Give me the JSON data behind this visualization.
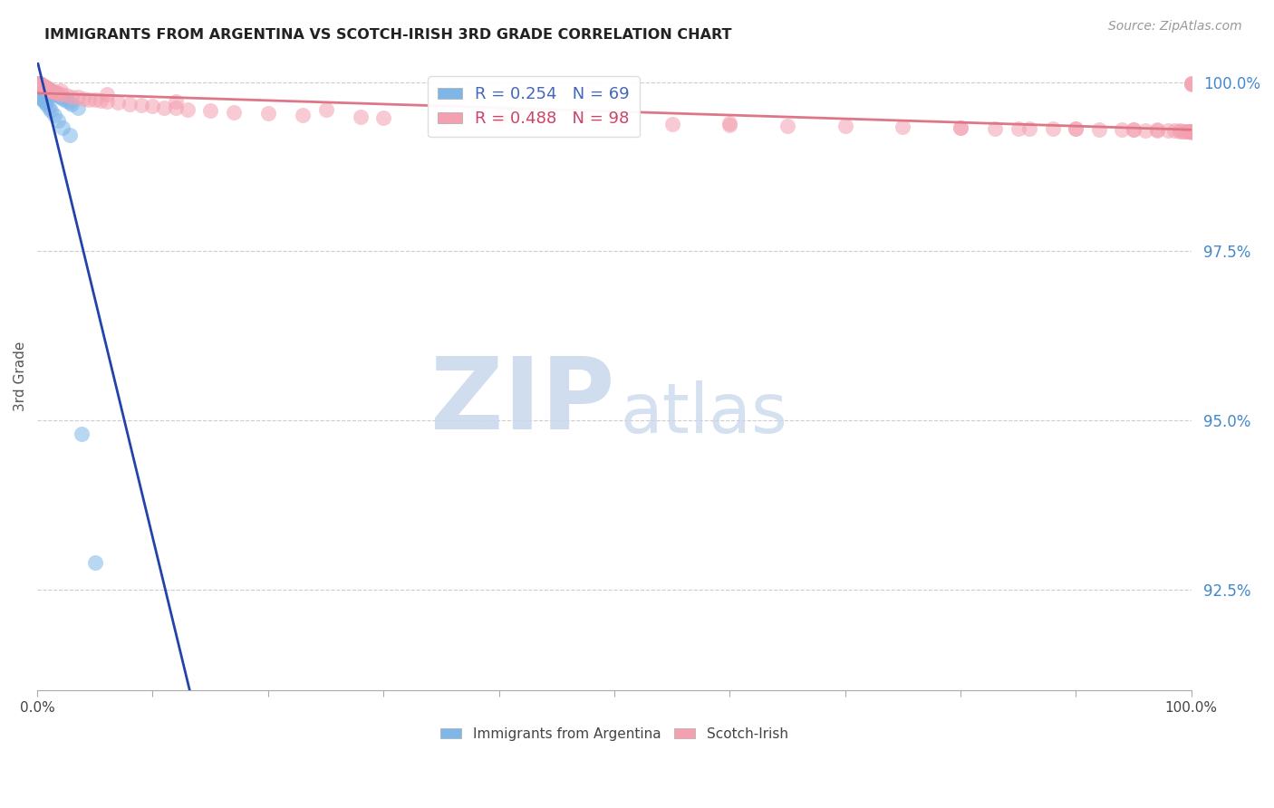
{
  "title": "IMMIGRANTS FROM ARGENTINA VS SCOTCH-IRISH 3RD GRADE CORRELATION CHART",
  "source_text": "Source: ZipAtlas.com",
  "ylabel": "3rd Grade",
  "xmin": 0.0,
  "xmax": 1.0,
  "ymin": 0.91,
  "ymax": 1.003,
  "yticks": [
    0.925,
    0.95,
    0.975,
    1.0
  ],
  "ytick_labels": [
    "92.5%",
    "95.0%",
    "97.5%",
    "100.0%"
  ],
  "series1_color": "#7EB6E8",
  "series2_color": "#F4A0B0",
  "line1_color": "#2244AA",
  "line2_color": "#DD7788",
  "background_color": "#ffffff",
  "series1_R": 0.254,
  "series1_N": 69,
  "series2_R": 0.488,
  "series2_N": 98,
  "blue_x": [
    0.001,
    0.001,
    0.001,
    0.001,
    0.001,
    0.001,
    0.001,
    0.001,
    0.001,
    0.001,
    0.001,
    0.002,
    0.002,
    0.002,
    0.002,
    0.002,
    0.002,
    0.002,
    0.003,
    0.003,
    0.003,
    0.003,
    0.003,
    0.004,
    0.004,
    0.004,
    0.004,
    0.005,
    0.005,
    0.005,
    0.005,
    0.006,
    0.006,
    0.006,
    0.007,
    0.007,
    0.008,
    0.008,
    0.009,
    0.009,
    0.01,
    0.01,
    0.011,
    0.012,
    0.013,
    0.015,
    0.016,
    0.018,
    0.02,
    0.022,
    0.025,
    0.028,
    0.03,
    0.035,
    0.002,
    0.003,
    0.004,
    0.005,
    0.006,
    0.007,
    0.008,
    0.01,
    0.012,
    0.015,
    0.018,
    0.022,
    0.028,
    0.038,
    0.05
  ],
  "blue_y": [
    0.9999,
    0.9999,
    0.9998,
    0.9998,
    0.9998,
    0.9997,
    0.9997,
    0.9997,
    0.9996,
    0.9996,
    0.9995,
    0.9998,
    0.9997,
    0.9997,
    0.9996,
    0.9996,
    0.9995,
    0.9994,
    0.9996,
    0.9995,
    0.9994,
    0.9993,
    0.9992,
    0.9995,
    0.9994,
    0.9993,
    0.9992,
    0.9994,
    0.9993,
    0.9992,
    0.9991,
    0.9993,
    0.9991,
    0.999,
    0.9992,
    0.999,
    0.9991,
    0.9989,
    0.999,
    0.9988,
    0.9989,
    0.9987,
    0.9988,
    0.9986,
    0.9985,
    0.9983,
    0.9982,
    0.998,
    0.9978,
    0.9976,
    0.9973,
    0.997,
    0.9968,
    0.9963,
    0.998,
    0.9978,
    0.9976,
    0.9975,
    0.9972,
    0.997,
    0.9968,
    0.9963,
    0.9958,
    0.9952,
    0.9943,
    0.9933,
    0.9922,
    0.948,
    0.929
  ],
  "pink_x": [
    0.001,
    0.001,
    0.001,
    0.001,
    0.001,
    0.002,
    0.002,
    0.002,
    0.003,
    0.003,
    0.003,
    0.004,
    0.004,
    0.005,
    0.005,
    0.006,
    0.006,
    0.007,
    0.007,
    0.008,
    0.008,
    0.009,
    0.01,
    0.01,
    0.012,
    0.013,
    0.015,
    0.016,
    0.018,
    0.02,
    0.025,
    0.03,
    0.035,
    0.04,
    0.045,
    0.05,
    0.055,
    0.06,
    0.07,
    0.08,
    0.09,
    0.1,
    0.11,
    0.12,
    0.13,
    0.15,
    0.17,
    0.2,
    0.23,
    0.28,
    0.3,
    0.35,
    0.4,
    0.5,
    0.55,
    0.6,
    0.65,
    0.7,
    0.75,
    0.8,
    0.83,
    0.86,
    0.88,
    0.9,
    0.92,
    0.94,
    0.95,
    0.96,
    0.97,
    0.98,
    0.985,
    0.99,
    0.993,
    0.995,
    0.997,
    0.998,
    0.999,
    0.9995,
    0.9997,
    0.9998,
    0.9999,
    0.9999,
    0.9999,
    0.002,
    0.004,
    0.008,
    0.02,
    0.06,
    0.12,
    0.25,
    0.4,
    0.6,
    0.8,
    0.85,
    0.9,
    0.95,
    0.97,
    0.99
  ],
  "pink_y": [
    0.9999,
    0.9998,
    0.9998,
    0.9997,
    0.9997,
    0.9998,
    0.9997,
    0.9996,
    0.9997,
    0.9996,
    0.9995,
    0.9996,
    0.9995,
    0.9995,
    0.9994,
    0.9994,
    0.9993,
    0.9993,
    0.9992,
    0.9992,
    0.9991,
    0.999,
    0.999,
    0.9989,
    0.9988,
    0.9987,
    0.9986,
    0.9985,
    0.9984,
    0.9983,
    0.9981,
    0.9979,
    0.9978,
    0.9976,
    0.9975,
    0.9974,
    0.9973,
    0.9972,
    0.997,
    0.9968,
    0.9966,
    0.9965,
    0.9963,
    0.9962,
    0.996,
    0.9958,
    0.9956,
    0.9954,
    0.9952,
    0.9949,
    0.9948,
    0.9945,
    0.9943,
    0.994,
    0.9938,
    0.9937,
    0.9936,
    0.9935,
    0.9934,
    0.9933,
    0.9932,
    0.9932,
    0.9931,
    0.9931,
    0.993,
    0.993,
    0.993,
    0.9929,
    0.9929,
    0.9929,
    0.9929,
    0.9928,
    0.9928,
    0.9928,
    0.9928,
    0.9927,
    0.9927,
    0.9927,
    0.9927,
    0.9926,
    0.9999,
    0.9998,
    0.9997,
    0.9996,
    0.9995,
    0.9992,
    0.9988,
    0.9982,
    0.9972,
    0.996,
    0.995,
    0.994,
    0.9933,
    0.9932,
    0.9931,
    0.993,
    0.993,
    0.9929
  ]
}
